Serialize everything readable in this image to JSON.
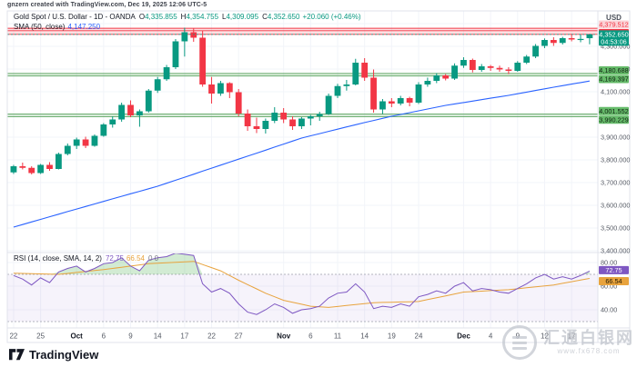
{
  "attribution": "gnzern created with TradingView.com, Dec 19, 2025 12:06 UTC-5",
  "legend": {
    "title": "Gold Spot / U.S. Dollar - 1D - OANDA",
    "ohlc": [
      {
        "label": "O",
        "value": "4,335.855"
      },
      {
        "label": "H",
        "value": "4,354.755"
      },
      {
        "label": "L",
        "value": "4,309.095"
      },
      {
        "label": "C",
        "value": "4,352.650"
      }
    ],
    "change": "+20.060 (+0.46%)",
    "sma_label": "SMA (50, close)",
    "sma_value": "4,147.250"
  },
  "rsi_legend": {
    "label": "RSI (14, close, SMA, 14, 2)",
    "rsi_value": "72.75",
    "ma_value": "66.54",
    "extras": "0  0"
  },
  "watermark": {
    "name": "汇通白银网",
    "url": "www.fx678.com"
  },
  "footer": {
    "brand": "TradingView"
  },
  "colors": {
    "up": "#089981",
    "down": "#f23645",
    "sma": "#2962ff",
    "rsi": "#7e57c2",
    "rsi_ma": "#e8a33d",
    "grid": "#f2f4f9",
    "axis_text": "#555a64",
    "border": "#e0e3eb",
    "zone_green_fill": "rgba(76,175,80,0.22)",
    "zone_green_edge": "#5fa463",
    "zone_red_fill": "rgba(242,54,69,0.15)",
    "zone_red_edge": "#f23645",
    "overbought_fill": "rgba(76,175,80,0.25)",
    "band_fill": "rgba(126,87,194,0.07)"
  },
  "chart_data": {
    "type": "candlestick",
    "title": "Gold Spot / U.S. Dollar, 1D, OANDA",
    "y_axis": {
      "unit": "USD",
      "range": [
        3396,
        4456
      ],
      "grid_step": 100,
      "grid_labels": [
        {
          "text": "4,300.000",
          "value": 4300
        },
        {
          "text": "4,200.000",
          "value": 4200
        },
        {
          "text": "4,100.000",
          "value": 4100
        },
        {
          "text": "3,900.000",
          "value": 3900
        },
        {
          "text": "3,800.000",
          "value": 3800
        },
        {
          "text": "3,700.000",
          "value": 3700
        },
        {
          "text": "3,600.000",
          "value": 3600
        },
        {
          "text": "3,500.000",
          "value": 3500
        },
        {
          "text": "3,400.000",
          "value": 3400
        }
      ]
    },
    "x_ticks": [
      {
        "label": "22",
        "index": 0
      },
      {
        "label": "25",
        "index": 3
      },
      {
        "label": "Oct",
        "index": 7
      },
      {
        "label": "6",
        "index": 10
      },
      {
        "label": "9",
        "index": 13
      },
      {
        "label": "14",
        "index": 16
      },
      {
        "label": "17",
        "index": 19
      },
      {
        "label": "22",
        "index": 22
      },
      {
        "label": "27",
        "index": 25
      },
      {
        "label": "Nov",
        "index": 30
      },
      {
        "label": "6",
        "index": 33
      },
      {
        "label": "11",
        "index": 36
      },
      {
        "label": "14",
        "index": 39
      },
      {
        "label": "19",
        "index": 42
      },
      {
        "label": "24",
        "index": 45
      },
      {
        "label": "Dec",
        "index": 50
      },
      {
        "label": "4",
        "index": 53
      },
      {
        "label": "9",
        "index": 56
      },
      {
        "label": "12",
        "index": 59
      },
      {
        "label": "17",
        "index": 62
      }
    ],
    "candles_ohlc": [
      [
        3745,
        3778,
        3738,
        3772
      ],
      [
        3772,
        3788,
        3758,
        3765
      ],
      [
        3765,
        3772,
        3736,
        3742
      ],
      [
        3742,
        3782,
        3738,
        3778
      ],
      [
        3778,
        3790,
        3752,
        3760
      ],
      [
        3760,
        3832,
        3758,
        3826
      ],
      [
        3826,
        3872,
        3820,
        3862
      ],
      [
        3862,
        3898,
        3848,
        3890
      ],
      [
        3890,
        3902,
        3852,
        3862
      ],
      [
        3862,
        3912,
        3858,
        3906
      ],
      [
        3906,
        3962,
        3902,
        3956
      ],
      [
        3956,
        3992,
        3942,
        3978
      ],
      [
        3978,
        4052,
        3968,
        4042
      ],
      [
        4042,
        4062,
        3988,
        3996
      ],
      [
        3996,
        4022,
        3946,
        4014
      ],
      [
        4014,
        4112,
        4008,
        4105
      ],
      [
        4105,
        4165,
        4095,
        4155
      ],
      [
        4155,
        4218,
        4148,
        4208
      ],
      [
        4208,
        4332,
        4200,
        4322
      ],
      [
        4322,
        4382,
        4255,
        4362
      ],
      [
        4362,
        4378,
        4320,
        4338
      ],
      [
        4338,
        4368,
        4122,
        4132
      ],
      [
        4132,
        4165,
        4048,
        4092
      ],
      [
        4092,
        4148,
        4082,
        4138
      ],
      [
        4138,
        4142,
        4072,
        4098
      ],
      [
        4098,
        4112,
        3992,
        4004
      ],
      [
        4004,
        4022,
        3928,
        3948
      ],
      [
        3948,
        3986,
        3918,
        3936
      ],
      [
        3936,
        3982,
        3916,
        3972
      ],
      [
        3972,
        4032,
        3962,
        4008
      ],
      [
        4008,
        4028,
        3962,
        3978
      ],
      [
        3978,
        3992,
        3932,
        3948
      ],
      [
        3948,
        3988,
        3936,
        3982
      ],
      [
        3982,
        3998,
        3952,
        3992
      ],
      [
        3992,
        4012,
        3972,
        4002
      ],
      [
        4002,
        4092,
        3998,
        4082
      ],
      [
        4082,
        4135,
        4072,
        4125
      ],
      [
        4125,
        4152,
        4105,
        4132
      ],
      [
        4132,
        4245,
        4128,
        4228
      ],
      [
        4228,
        4248,
        4148,
        4162
      ],
      [
        4162,
        4198,
        4008,
        4022
      ],
      [
        4022,
        4068,
        4002,
        4058
      ],
      [
        4058,
        4072,
        4032,
        4048
      ],
      [
        4048,
        4082,
        4040,
        4072
      ],
      [
        4072,
        4078,
        4036,
        4052
      ],
      [
        4052,
        4142,
        4046,
        4132
      ],
      [
        4132,
        4162,
        4122,
        4148
      ],
      [
        4148,
        4182,
        4138,
        4172
      ],
      [
        4172,
        4178,
        4150,
        4158
      ],
      [
        4158,
        4225,
        4152,
        4215
      ],
      [
        4215,
        4252,
        4205,
        4240
      ],
      [
        4240,
        4246,
        4185,
        4196
      ],
      [
        4196,
        4222,
        4188,
        4212
      ],
      [
        4212,
        4218,
        4192,
        4205
      ],
      [
        4205,
        4215,
        4188,
        4198
      ],
      [
        4198,
        4208,
        4178,
        4192
      ],
      [
        4192,
        4235,
        4188,
        4228
      ],
      [
        4228,
        4262,
        4222,
        4255
      ],
      [
        4255,
        4310,
        4248,
        4302
      ],
      [
        4302,
        4335,
        4292,
        4328
      ],
      [
        4328,
        4340,
        4302,
        4315
      ],
      [
        4315,
        4342,
        4308,
        4336
      ],
      [
        4336,
        4355,
        4322,
        4330
      ],
      [
        4330,
        4352,
        4318,
        4332.59
      ],
      [
        4335.855,
        4354.755,
        4309.095,
        4352.65
      ]
    ],
    "overlays": {
      "sma50": {
        "name": "SMA (50, close)",
        "points": [
          [
            0,
            3504
          ],
          [
            8,
            3595
          ],
          [
            16,
            3684
          ],
          [
            24,
            3790
          ],
          [
            32,
            3896
          ],
          [
            38,
            3955
          ],
          [
            42,
            3992
          ],
          [
            48,
            4040
          ],
          [
            55,
            4084
          ],
          [
            60,
            4120
          ],
          [
            64,
            4147.25
          ]
        ]
      },
      "last_price_line": 4352.65,
      "levels": [
        {
          "text": "4,379.512",
          "price": 4379.512,
          "bg": "#fbd2d6",
          "fg": "#f23645",
          "badge_center_y": 27
        },
        {
          "text": "4,368.917",
          "price": 4368.917,
          "bg": "#f23645",
          "fg": "#ffffff",
          "badge_center_y": 36.5
        },
        {
          "text": "4,180.688",
          "price": 4180.688,
          "bg": "#66bb6a",
          "fg": "#0f2312",
          "badge_center_y": 77.5
        },
        {
          "text": "4,169.397",
          "price": 4169.397,
          "bg": "#66bb6a",
          "fg": "#0f2312",
          "badge_center_y": 87
        },
        {
          "text": "4,001.552",
          "price": 4001.552,
          "bg": "#66bb6a",
          "fg": "#0f2312",
          "badge_center_y": 122.3
        },
        {
          "text": "3,990.229",
          "price": 3990.229,
          "bg": "#66bb6a",
          "fg": "#0f2312",
          "badge_center_y": 131.7
        }
      ],
      "last_badge": {
        "text": "4,352.650",
        "countdown": "04:53:06",
        "price": 4352.65,
        "bg": "#089981",
        "fg": "#ffffff"
      },
      "zones": [
        {
          "kind": "red",
          "top": 4379.512,
          "bottom": 4352.65
        },
        {
          "kind": "green",
          "top": 4180.688,
          "bottom": 4169.397
        },
        {
          "kind": "green",
          "top": 4001.552,
          "bottom": 3990.229
        }
      ]
    },
    "rsi_pane": {
      "type": "line",
      "grid_labels": [
        {
          "text": "80.00",
          "value": 80
        },
        {
          "text": "60.00",
          "value": 60
        },
        {
          "text": "40.00",
          "value": 40
        }
      ],
      "band": [
        30,
        70
      ],
      "rsi": [
        69,
        66,
        61,
        67,
        63,
        72,
        75,
        77,
        72,
        75,
        79,
        80,
        84,
        77,
        73,
        82,
        84,
        85,
        88,
        87,
        86,
        62,
        55,
        58,
        54,
        45,
        38,
        36,
        40,
        45,
        42,
        37,
        40,
        41,
        43,
        50,
        54,
        55,
        62,
        55,
        41,
        43,
        42,
        45,
        43,
        51,
        53,
        56,
        54,
        60,
        63,
        56,
        58,
        57,
        55,
        54,
        58,
        62,
        67,
        70,
        66,
        68,
        66,
        69,
        72.75
      ],
      "rsi_ma_points": [
        [
          0,
          71
        ],
        [
          5,
          70
        ],
        [
          10,
          74
        ],
        [
          15,
          79
        ],
        [
          20,
          81
        ],
        [
          23,
          73
        ],
        [
          25,
          65
        ],
        [
          28,
          54
        ],
        [
          30,
          48
        ],
        [
          33,
          43
        ],
        [
          35,
          42
        ],
        [
          40,
          46
        ],
        [
          45,
          47
        ],
        [
          50,
          55
        ],
        [
          55,
          57
        ],
        [
          60,
          61
        ],
        [
          64,
          66.54
        ]
      ],
      "current": {
        "rsi": "72.75",
        "ma": "66.54"
      }
    }
  }
}
